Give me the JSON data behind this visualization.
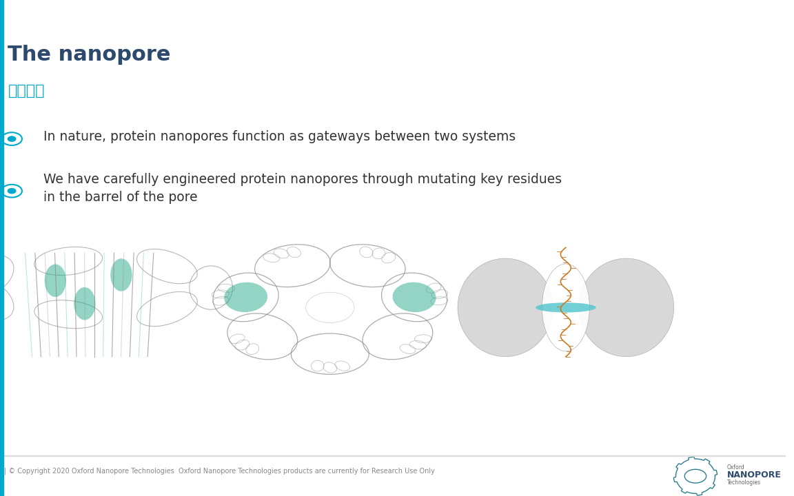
{
  "background_color": "#ffffff",
  "title": "The nanopore",
  "title_color": "#2d4a6e",
  "title_fontsize": 22,
  "subtitle": "核心技术",
  "subtitle_color": "#00aacc",
  "subtitle_fontsize": 16,
  "bullet_color": "#00aacc",
  "bullet_fontsize": 13.5,
  "bullets": [
    "In nature, protein nanopores function as gateways between two systems",
    "We have carefully engineered protein nanopores through mutating key residues\nin the barrel of the pore"
  ],
  "footer_text": "| © Copyright 2020 Oxford Nanopore Technologies  Oxford Nanopore Technologies products are currently for Research Use Only",
  "footer_color": "#888888",
  "footer_fontsize": 7,
  "left_bar_color": "#00aacc",
  "left_bar_width": 0.004
}
